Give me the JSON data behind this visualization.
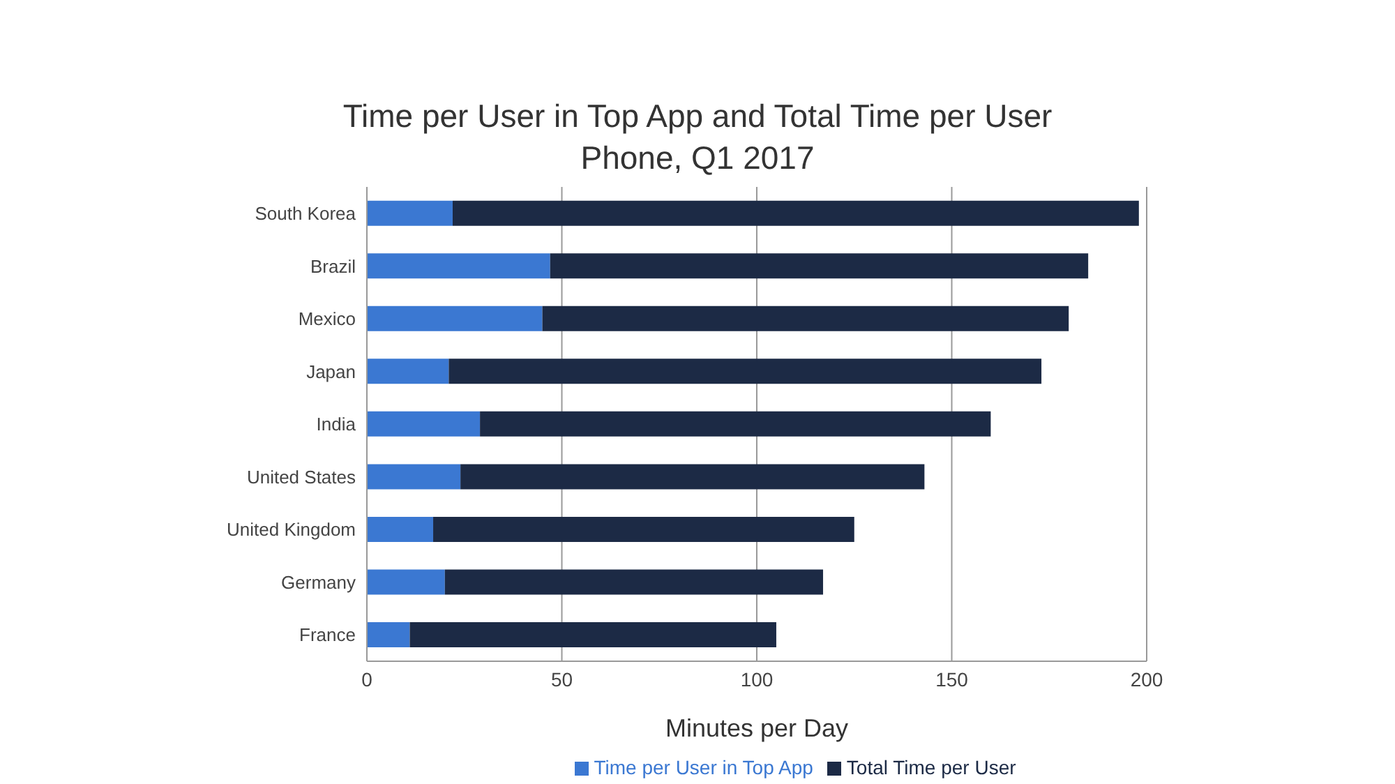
{
  "chart_data": {
    "type": "bar",
    "orientation": "horizontal",
    "stacked": true,
    "title": "Time per User in Top App and Total Time per User",
    "subtitle": "Phone, Q1 2017",
    "xlabel": "Minutes per Day",
    "categories": [
      "South Korea",
      "Brazil",
      "Mexico",
      "Japan",
      "India",
      "United States",
      "United Kingdom",
      "Germany",
      "France"
    ],
    "series": [
      {
        "name": "Time per User in Top App",
        "color": "#3b78d2",
        "values": [
          22,
          47,
          45,
          21,
          29,
          24,
          17,
          20,
          11
        ]
      },
      {
        "name": "Total Time per User",
        "color": "#1c2a45",
        "values": [
          176,
          138,
          135,
          152,
          131,
          119,
          108,
          97,
          94
        ]
      }
    ],
    "xlim": [
      0,
      200
    ],
    "xticks": [
      0,
      50,
      100,
      150,
      200
    ],
    "grid": "x",
    "legend": "bottom"
  }
}
